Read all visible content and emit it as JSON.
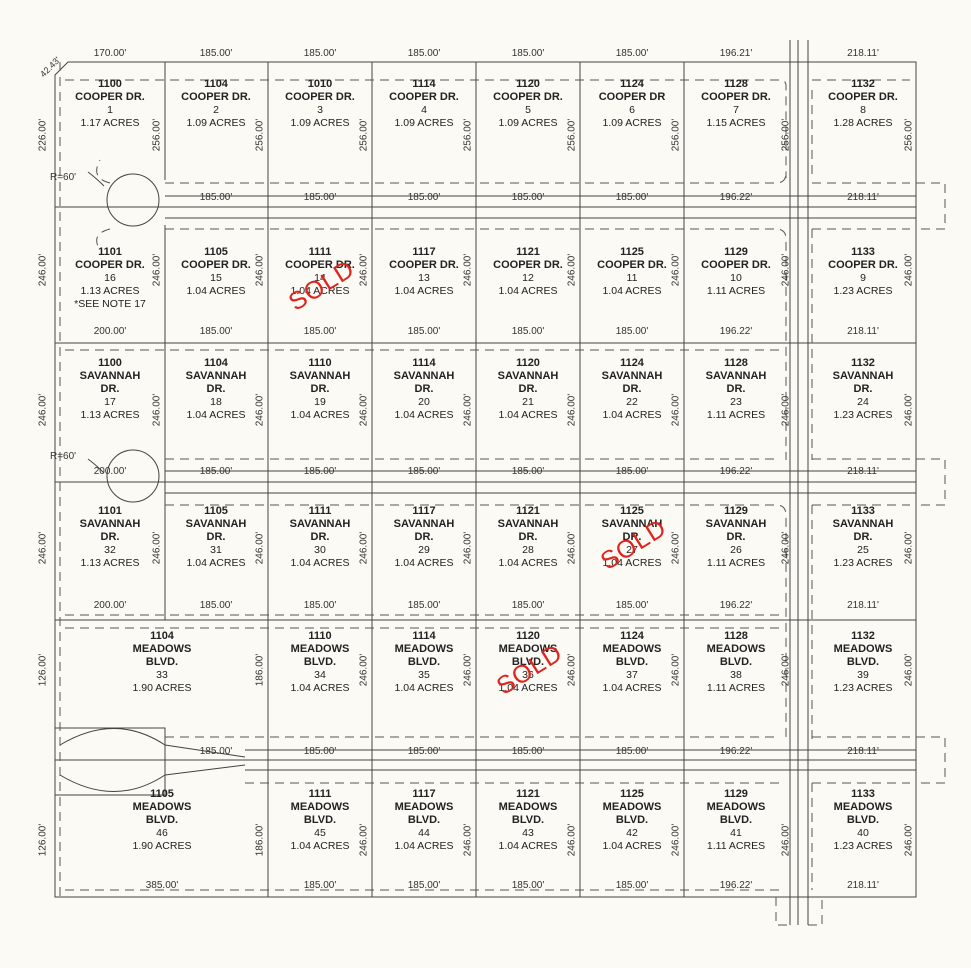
{
  "plat": {
    "corner_chamfer": "42.43'",
    "cul_de_sac_radius_labels": [
      "R=60'",
      "R=60'"
    ],
    "sold_label": "SOLD",
    "sold_color": "#e0231c",
    "lots": [
      {
        "lot": "1",
        "address": "1100",
        "street": "COOPER DR.",
        "acres": "1.17 ACRES"
      },
      {
        "lot": "2",
        "address": "1104",
        "street": "COOPER DR.",
        "acres": "1.09 ACRES"
      },
      {
        "lot": "3",
        "address": "1010",
        "street": "COOPER DR.",
        "acres": "1.09 ACRES"
      },
      {
        "lot": "4",
        "address": "1114",
        "street": "COOPER DR.",
        "acres": "1.09 ACRES"
      },
      {
        "lot": "5",
        "address": "1120",
        "street": "COOPER DR.",
        "acres": "1.09 ACRES"
      },
      {
        "lot": "6",
        "address": "1124",
        "street": "COOPER DR",
        "acres": "1.09 ACRES"
      },
      {
        "lot": "7",
        "address": "1128",
        "street": "COOPER DR.",
        "acres": "1.15 ACRES"
      },
      {
        "lot": "8",
        "address": "1132",
        "street": "COOPER DR.",
        "acres": "1.28 ACRES"
      },
      {
        "lot": "16",
        "address": "1101",
        "street": "COOPER DR.",
        "acres": "1.13 ACRES",
        "note": "*SEE NOTE 17"
      },
      {
        "lot": "15",
        "address": "1105",
        "street": "COOPER DR.",
        "acres": "1.04 ACRES"
      },
      {
        "lot": "14",
        "address": "1111",
        "street": "COOPER DR.",
        "acres": "1.04 ACRES",
        "sold": true
      },
      {
        "lot": "13",
        "address": "1117",
        "street": "COOPER DR.",
        "acres": "1.04 ACRES"
      },
      {
        "lot": "12",
        "address": "1121",
        "street": "COOPER DR.",
        "acres": "1.04 ACRES"
      },
      {
        "lot": "11",
        "address": "1125",
        "street": "COOPER DR.",
        "acres": "1.04 ACRES"
      },
      {
        "lot": "10",
        "address": "1129",
        "street": "COOPER DR.",
        "acres": "1.11 ACRES"
      },
      {
        "lot": "9",
        "address": "1133",
        "street": "COOPER DR.",
        "acres": "1.23 ACRES"
      },
      {
        "lot": "17",
        "address": "1100",
        "street": "SAVANNAH DR.",
        "acres": "1.13 ACRES"
      },
      {
        "lot": "18",
        "address": "1104",
        "street": "SAVANNAH DR.",
        "acres": "1.04 ACRES"
      },
      {
        "lot": "19",
        "address": "1110",
        "street": "SAVANNAH DR.",
        "acres": "1.04 ACRES"
      },
      {
        "lot": "20",
        "address": "1114",
        "street": "SAVANNAH DR.",
        "acres": "1.04 ACRES"
      },
      {
        "lot": "21",
        "address": "1120",
        "street": "SAVANNAH DR.",
        "acres": "1.04 ACRES"
      },
      {
        "lot": "22",
        "address": "1124",
        "street": "SAVANNAH DR.",
        "acres": "1.04 ACRES"
      },
      {
        "lot": "23",
        "address": "1128",
        "street": "SAVANNAH DR.",
        "acres": "1.11 ACRES"
      },
      {
        "lot": "24",
        "address": "1132",
        "street": "SAVANNAH DR.",
        "acres": "1.23 ACRES"
      },
      {
        "lot": "32",
        "address": "1101",
        "street": "SAVANNAH DR.",
        "acres": "1.13 ACRES"
      },
      {
        "lot": "31",
        "address": "1105",
        "street": "SAVANNAH DR.",
        "acres": "1.04 ACRES"
      },
      {
        "lot": "30",
        "address": "1111",
        "street": "SAVANNAH DR.",
        "acres": "1.04 ACRES"
      },
      {
        "lot": "29",
        "address": "1117",
        "street": "SAVANNAH DR.",
        "acres": "1.04 ACRES"
      },
      {
        "lot": "28",
        "address": "1121",
        "street": "SAVANNAH DR.",
        "acres": "1.04 ACRES"
      },
      {
        "lot": "27",
        "address": "1125",
        "street": "SAVANNAH DR.",
        "acres": "1.04 ACRES",
        "sold": true
      },
      {
        "lot": "26",
        "address": "1129",
        "street": "SAVANNAH DR.",
        "acres": "1.11 ACRES"
      },
      {
        "lot": "25",
        "address": "1133",
        "street": "SAVANNAH DR.",
        "acres": "1.23 ACRES"
      },
      {
        "lot": "33",
        "address": "1104",
        "street": "MEADOWS BLVD.",
        "acres": "1.90 ACRES"
      },
      {
        "lot": "34",
        "address": "1110",
        "street": "MEADOWS BLVD.",
        "acres": "1.04 ACRES"
      },
      {
        "lot": "35",
        "address": "1114",
        "street": "MEADOWS BLVD.",
        "acres": "1.04 ACRES"
      },
      {
        "lot": "36",
        "address": "1120",
        "street": "MEADOWS BLVD.",
        "acres": "1.04 ACRES",
        "sold": true
      },
      {
        "lot": "37",
        "address": "1124",
        "street": "MEADOWS BLVD.",
        "acres": "1.04 ACRES"
      },
      {
        "lot": "38",
        "address": "1128",
        "street": "MEADOWS BLVD.",
        "acres": "1.11 ACRES"
      },
      {
        "lot": "39",
        "address": "1132",
        "street": "MEADOWS BLVD.",
        "acres": "1.23 ACRES"
      },
      {
        "lot": "46",
        "address": "1105",
        "street": "MEADOWS BLVD.",
        "acres": "1.90 ACRES"
      },
      {
        "lot": "45",
        "address": "1111",
        "street": "MEADOWS BLVD.",
        "acres": "1.04 ACRES"
      },
      {
        "lot": "44",
        "address": "1117",
        "street": "MEADOWS BLVD.",
        "acres": "1.04 ACRES"
      },
      {
        "lot": "43",
        "address": "1121",
        "street": "MEADOWS BLVD.",
        "acres": "1.04 ACRES"
      },
      {
        "lot": "42",
        "address": "1125",
        "street": "MEADOWS BLVD.",
        "acres": "1.04 ACRES"
      },
      {
        "lot": "41",
        "address": "1129",
        "street": "MEADOWS BLVD.",
        "acres": "1.11 ACRES"
      },
      {
        "lot": "40",
        "address": "1133",
        "street": "MEADOWS BLVD.",
        "acres": "1.23 ACRES"
      }
    ],
    "frontage_dims": [
      [
        "170.00'",
        "185.00'",
        "185.00'",
        "185.00'",
        "185.00'",
        "185.00'",
        "196.21'",
        "218.11'"
      ],
      [
        "",
        "185.00'",
        "185.00'",
        "185.00'",
        "185.00'",
        "185.00'",
        "196.22'",
        "218.11'"
      ],
      [
        "200.00'",
        "185.00'",
        "185.00'",
        "185.00'",
        "185.00'",
        "185.00'",
        "196.22'",
        "218.11'"
      ],
      [
        "200.00'",
        "185.00'",
        "185.00'",
        "185.00'",
        "185.00'",
        "185.00'",
        "196.22'",
        "218.11'"
      ],
      [
        "200.00'",
        "185.00'",
        "185.00'",
        "185.00'",
        "185.00'",
        "185.00'",
        "196.22'",
        "218.11'"
      ],
      [
        "",
        "185.00'",
        "185.00'",
        "185.00'",
        "185.00'",
        "185.00'",
        "196.22'",
        "218.11'"
      ],
      [
        "385.00'",
        "",
        "185.00'",
        "185.00'",
        "185.00'",
        "185.00'",
        "196.22'",
        "218.11'"
      ]
    ],
    "side_dims": [
      [
        "226.00'",
        "256.00'",
        "256.00'",
        "256.00'",
        "256.00'",
        "256.00'",
        "256.00'",
        "256.00'",
        "256.00'"
      ],
      [
        "246.00'",
        "246.00'",
        "246.00'",
        "246.00'",
        "246.00'",
        "246.00'",
        "246.00'",
        "246.00'",
        "246.00'"
      ],
      [
        "246.00'",
        "246.00'",
        "246.00'",
        "246.00'",
        "246.00'",
        "246.00'",
        "246.00'",
        "246.00'",
        "246.00'"
      ],
      [
        "246.00'",
        "246.00'",
        "246.00'",
        "246.00'",
        "246.00'",
        "246.00'",
        "246.00'",
        "246.00'",
        "246.00'"
      ],
      [
        "126.00'",
        "",
        "186.00'",
        "246.00'",
        "246.00'",
        "246.00'",
        "246.00'",
        "246.00'",
        "246.00'"
      ],
      [
        "126.00'",
        "",
        "186.00'",
        "246.00'",
        "246.00'",
        "246.00'",
        "246.00'",
        "246.00'",
        "246.00'"
      ]
    ]
  }
}
